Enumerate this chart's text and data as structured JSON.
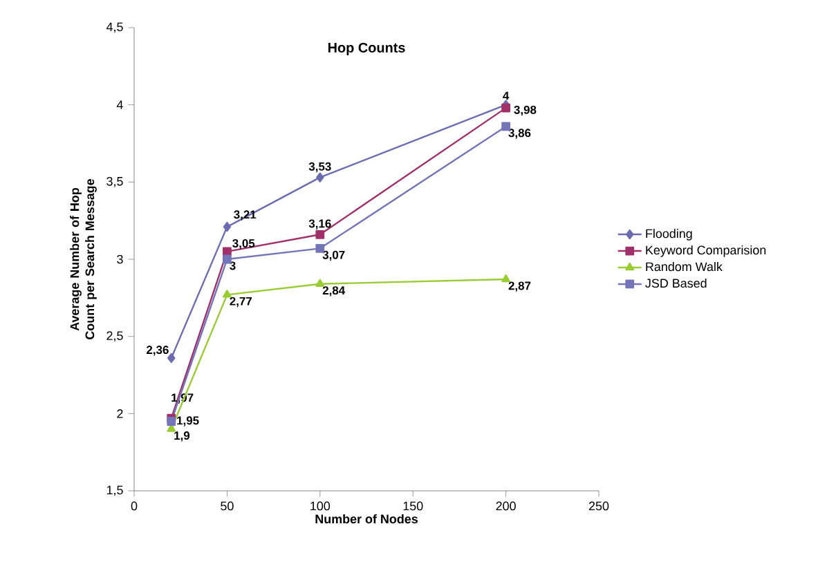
{
  "chart_data": {
    "type": "line",
    "title": "Hop Counts",
    "xlabel": "Number of Nodes",
    "ylabel": "Average Number of Hop Count per Search Message",
    "x": [
      20,
      50,
      100,
      200
    ],
    "series": [
      {
        "name": "Flooding",
        "color": "#6b6bb0",
        "marker": "diamond",
        "values": [
          2.36,
          3.21,
          3.53,
          4
        ],
        "value_labels": [
          "2,36",
          "3,21",
          "3,53",
          "4"
        ]
      },
      {
        "name": "Keyword Comparision",
        "color": "#a0306a",
        "marker": "square",
        "values": [
          1.97,
          3.05,
          3.16,
          3.98
        ],
        "value_labels": [
          "1,97",
          "3,05",
          "3,16",
          "3,98"
        ]
      },
      {
        "name": "Random Walk",
        "color": "#99cc33",
        "marker": "triangle",
        "values": [
          1.9,
          2.77,
          2.84,
          2.87
        ],
        "value_labels": [
          "1,9",
          "2,77",
          "2,84",
          "2,87"
        ]
      },
      {
        "name": "JSD Based",
        "color": "#7474b8",
        "marker": "square",
        "values": [
          1.95,
          3,
          3.07,
          3.86
        ],
        "value_labels": [
          "1,95",
          "3",
          "3,07",
          "3,86"
        ]
      }
    ],
    "xlim": [
      0,
      250
    ],
    "xticks": [
      0,
      50,
      100,
      150,
      200,
      250
    ],
    "ylim": [
      1.5,
      4.5
    ],
    "yticks": [
      {
        "value": 1.5,
        "label": "1,5"
      },
      {
        "value": 2,
        "label": "2"
      },
      {
        "value": 2.5,
        "label": "2,5"
      },
      {
        "value": 3,
        "label": "3"
      },
      {
        "value": 3.5,
        "label": "3,5"
      },
      {
        "value": 4,
        "label": "4"
      },
      {
        "value": 4.5,
        "label": "4,5"
      }
    ],
    "grid": false,
    "legend": "right",
    "line_style": "solid"
  }
}
